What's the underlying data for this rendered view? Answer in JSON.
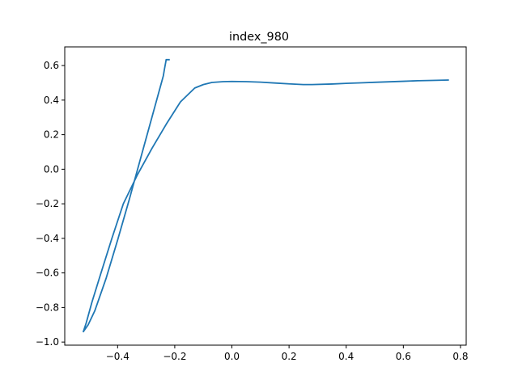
{
  "chart_data": {
    "type": "line",
    "title": "index_980",
    "xlabel": "",
    "ylabel": "",
    "xlim": [
      -0.585,
      0.82
    ],
    "ylim": [
      -1.018,
      0.708
    ],
    "x_ticks": [
      -0.4,
      -0.2,
      0.0,
      0.2,
      0.4,
      0.6,
      0.8
    ],
    "x_tick_labels": [
      "−0.4",
      "−0.2",
      "0.0",
      "0.2",
      "0.4",
      "0.6",
      "0.8"
    ],
    "y_ticks": [
      -1.0,
      -0.8,
      -0.6,
      -0.4,
      -0.2,
      0.0,
      0.2,
      0.4,
      0.6
    ],
    "y_tick_labels": [
      "−1.0",
      "−0.8",
      "−0.6",
      "−0.4",
      "−0.2",
      "0.0",
      "0.2",
      "0.4",
      "0.6"
    ],
    "grid": false,
    "line_color": "#1f77b4",
    "series": [
      {
        "x": [
          -0.22,
          -0.23,
          -0.236,
          -0.24,
          -0.255,
          -0.28,
          -0.32,
          -0.36,
          -0.4,
          -0.44,
          -0.48,
          -0.503,
          -0.52,
          -0.51,
          -0.49,
          -0.46,
          -0.42,
          -0.38,
          -0.33,
          -0.28,
          -0.23,
          -0.18,
          -0.13,
          -0.1,
          -0.07,
          -0.03,
          0.0,
          0.05,
          0.1,
          0.15,
          0.2,
          0.25,
          0.28,
          0.35,
          0.4,
          0.45,
          0.5,
          0.55,
          0.6,
          0.65,
          0.7,
          0.757
        ],
        "y": [
          0.634,
          0.634,
          0.58,
          0.54,
          0.45,
          0.3,
          0.06,
          -0.18,
          -0.41,
          -0.63,
          -0.82,
          -0.9,
          -0.94,
          -0.89,
          -0.77,
          -0.61,
          -0.4,
          -0.2,
          -0.03,
          0.12,
          0.26,
          0.39,
          0.47,
          0.49,
          0.502,
          0.507,
          0.508,
          0.507,
          0.504,
          0.499,
          0.494,
          0.49,
          0.49,
          0.493,
          0.497,
          0.5,
          0.503,
          0.506,
          0.509,
          0.512,
          0.514,
          0.516
        ]
      }
    ]
  }
}
